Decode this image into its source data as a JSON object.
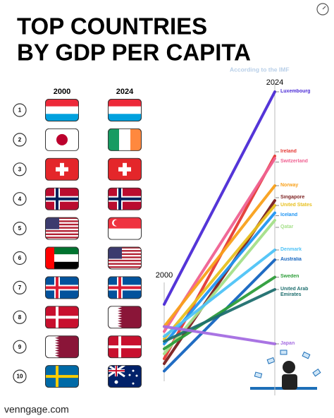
{
  "header": {
    "title_line1": "TOP COUNTRIES",
    "title_line2": "BY GDP PER CAPITA",
    "source": "According to the IMF"
  },
  "rankings": {
    "headers": [
      "2000",
      "2024"
    ],
    "ranks": [
      1,
      2,
      3,
      4,
      5,
      6,
      7,
      8,
      9,
      10
    ]
  },
  "chart_data": {
    "type": "slope",
    "x": [
      "2000",
      "2024"
    ],
    "ylim": [
      15,
      140
    ],
    "series": [
      {
        "name": "Luxembourg",
        "color": "#4b2bd6",
        "values": [
          49,
          135
        ]
      },
      {
        "name": "Ireland",
        "color": "#e53935",
        "values": [
          27,
          109
        ]
      },
      {
        "name": "Switzerland",
        "color": "#f06292",
        "values": [
          38,
          108
        ]
      },
      {
        "name": "Norway",
        "color": "#f9a11b",
        "values": [
          40,
          97
        ]
      },
      {
        "name": "Singapore",
        "color": "#7b1f1f",
        "values": [
          25,
          91
        ]
      },
      {
        "name": "United States",
        "color": "#e8c020",
        "values": [
          35,
          89
        ]
      },
      {
        "name": "Iceland",
        "color": "#2196f3",
        "values": [
          33,
          86
        ]
      },
      {
        "name": "Qatar",
        "color": "#a5e08a",
        "values": [
          29,
          83
        ]
      },
      {
        "name": "Denmark",
        "color": "#4fc3f7",
        "values": [
          36,
          71
        ]
      },
      {
        "name": "Australia",
        "color": "#1565c0",
        "values": [
          22,
          67
        ]
      },
      {
        "name": "Sweden",
        "color": "#2e9e3a",
        "values": [
          31,
          60
        ]
      },
      {
        "name": "United Arab Emirates",
        "color": "#1f6f6f",
        "values": [
          34,
          55
        ]
      },
      {
        "name": "Japan",
        "color": "#a56de2",
        "values": [
          40,
          33
        ]
      }
    ]
  },
  "footer": "venngage.com"
}
